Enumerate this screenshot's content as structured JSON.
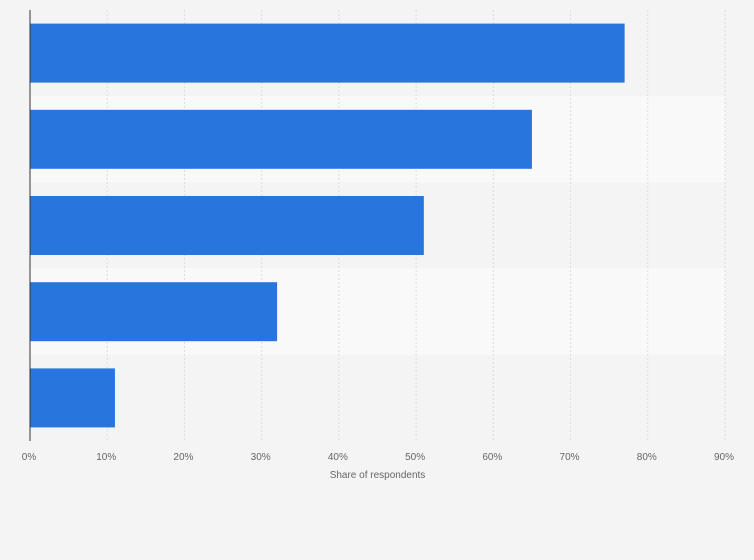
{
  "chart_data": {
    "type": "bar",
    "orientation": "horizontal",
    "categories": [
      "",
      "",
      "",
      "",
      ""
    ],
    "values": [
      77,
      65,
      51,
      32,
      11
    ],
    "xlabel": "Share of respondents",
    "ylabel": "",
    "xlim": [
      0,
      90
    ],
    "tick_values": [
      0,
      10,
      20,
      30,
      40,
      50,
      60,
      70,
      80,
      90
    ],
    "tick_labels": [
      "0%",
      "10%",
      "20%",
      "30%",
      "40%",
      "50%",
      "60%",
      "70%",
      "80%",
      "90%"
    ],
    "grid": true,
    "legend": "none",
    "colors": {
      "bar": "#2876dd",
      "band_light": "#f9f9f9",
      "band_dark": "#f4f4f4",
      "grid": "#dddddd",
      "axis": "#333333"
    }
  }
}
